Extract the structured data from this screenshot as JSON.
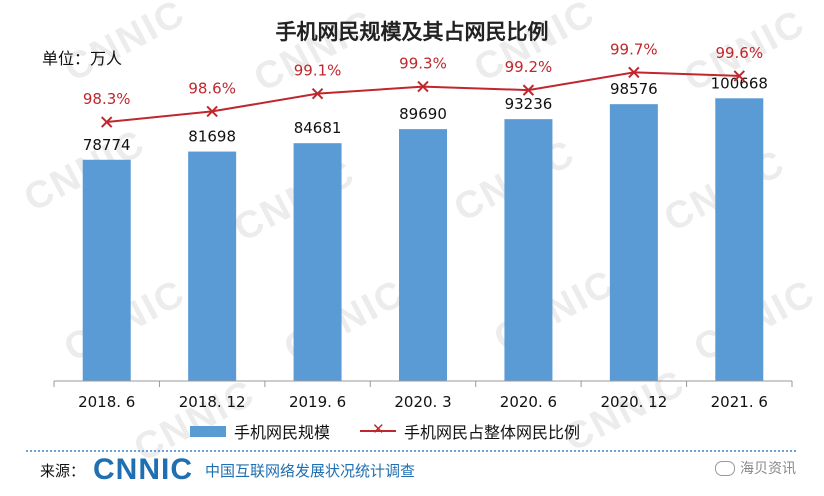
{
  "chart_data": {
    "type": "bar",
    "title": "手机网民规模及其占网民比例",
    "unit_label": "单位：万人",
    "categories": [
      "2018. 6",
      "2018. 12",
      "2019. 6",
      "2020. 3",
      "2020. 6",
      "2020. 12",
      "2021. 6"
    ],
    "series": [
      {
        "name": "手机网民规模",
        "kind": "bar",
        "color": "#5b9bd5",
        "values": [
          78774,
          81698,
          84681,
          89690,
          93236,
          98576,
          100668
        ]
      },
      {
        "name": "手机网民占整体网民比例",
        "kind": "line",
        "marker": "x",
        "color": "#c0272d",
        "values": [
          98.3,
          98.6,
          99.1,
          99.3,
          99.2,
          99.7,
          99.6
        ],
        "labels": [
          "98.3%",
          "98.6%",
          "99.1%",
          "99.3%",
          "99.2%",
          "99.7%",
          "99.6%"
        ]
      }
    ],
    "ylim_bar": [
      0,
      120000
    ],
    "ylim_line": [
      91,
      100.5
    ],
    "legend_position": "bottom",
    "grid": false
  },
  "footer": {
    "source_label": "来源：",
    "logo_text": "CNNIC",
    "source_name": "中国互联网络发展状况统计调查"
  },
  "watermark": {
    "text": "CNNIC",
    "channel": "海贝资讯"
  }
}
